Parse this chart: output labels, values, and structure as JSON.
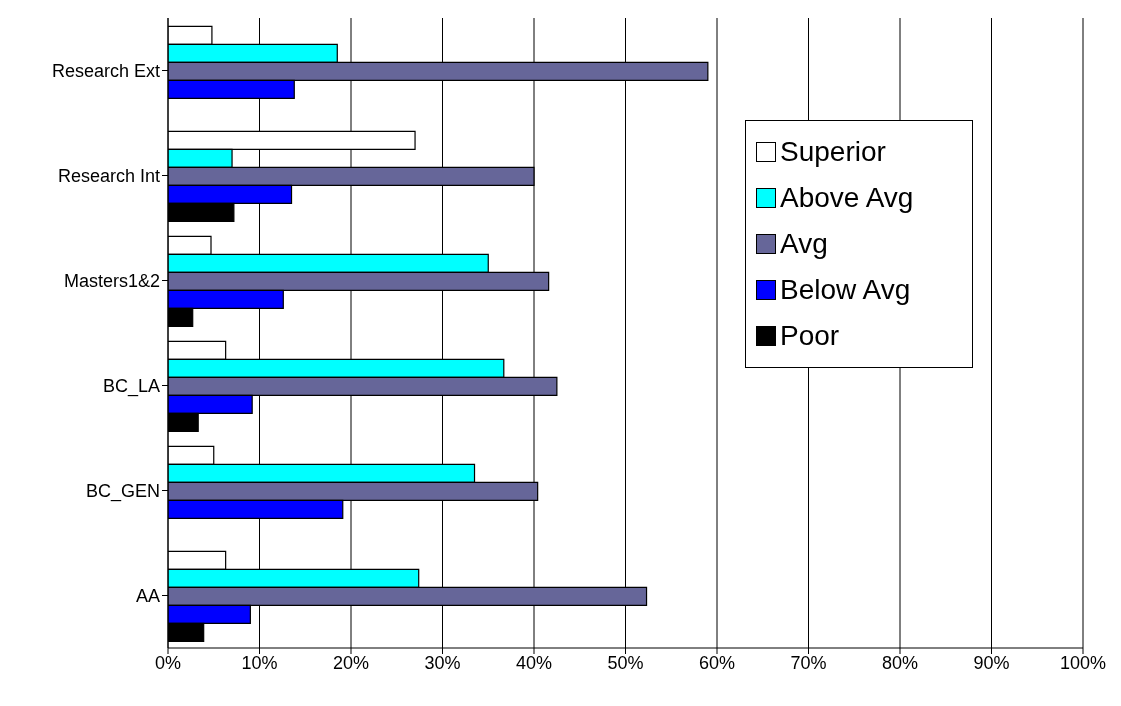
{
  "chart_data": {
    "type": "bar",
    "orientation": "horizontal",
    "categories": [
      "Research Ext",
      "Research Int",
      "Masters1&2",
      "BC_LA",
      "BC_GEN",
      "AA"
    ],
    "series": [
      {
        "name": "Superior",
        "color": "#ffffff",
        "values": [
          4.8,
          27,
          4.7,
          6.3,
          5,
          6.3
        ]
      },
      {
        "name": "Above Avg",
        "color": "#00ffff",
        "values": [
          18.5,
          7,
          35,
          36.7,
          33.5,
          27.4
        ]
      },
      {
        "name": "Avg",
        "color": "#666699",
        "values": [
          59,
          40,
          41.6,
          42.5,
          40.4,
          52.3
        ]
      },
      {
        "name": "Below Avg",
        "color": "#0000ff",
        "values": [
          13.8,
          13.5,
          12.6,
          9.2,
          19.1,
          9
        ]
      },
      {
        "name": "Poor",
        "color": "#000000",
        "values": [
          null,
          7.2,
          2.7,
          3.3,
          null,
          3.9
        ]
      }
    ],
    "xlim": [
      0,
      100
    ],
    "xticks": [
      {
        "value": 0,
        "label": "0%"
      },
      {
        "value": 10,
        "label": "10%"
      },
      {
        "value": 20,
        "label": "20%"
      },
      {
        "value": 30,
        "label": "30%"
      },
      {
        "value": 40,
        "label": "40%"
      },
      {
        "value": 50,
        "label": "50%"
      },
      {
        "value": 60,
        "label": "60%"
      },
      {
        "value": 70,
        "label": "70%"
      },
      {
        "value": 80,
        "label": "80%"
      },
      {
        "value": 90,
        "label": "90%"
      },
      {
        "value": 100,
        "label": "100%"
      }
    ],
    "grid": "x",
    "legend": "right"
  }
}
